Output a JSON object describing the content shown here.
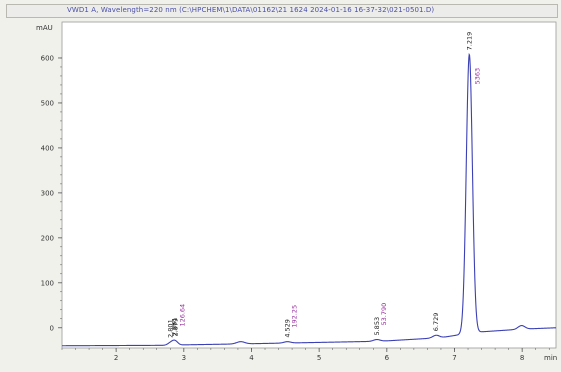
{
  "window": {
    "title": "VWD1 A, Wavelength=220 nm (C:\\HPCHEM\\1\\DATA\\01162\\21 1624 2024-01-16 16-37-32\\021-0501.D)"
  },
  "colors": {
    "trace": "#3b40b4",
    "retention_label": "#222222",
    "area_label": "#9a2ea0",
    "axis": "#555555",
    "background": "#ffffff"
  },
  "chart_data": {
    "type": "line",
    "title": "",
    "ylabel": "mAU",
    "xlabel": "min",
    "xlim": [
      1.2,
      8.5
    ],
    "ylim": [
      -45,
      680
    ],
    "x_ticks": [
      2,
      3,
      4,
      5,
      6,
      7,
      8
    ],
    "y_ticks": [
      0,
      100,
      200,
      300,
      400,
      500,
      600
    ],
    "grid": false,
    "baseline": [
      {
        "x": 1.2,
        "y": -40
      },
      {
        "x": 2.8,
        "y": -39
      },
      {
        "x": 3.0,
        "y": -38
      },
      {
        "x": 3.8,
        "y": -36
      },
      {
        "x": 4.5,
        "y": -34
      },
      {
        "x": 5.9,
        "y": -30
      },
      {
        "x": 6.8,
        "y": -22
      },
      {
        "x": 7.3,
        "y": -10
      },
      {
        "x": 8.0,
        "y": -3
      },
      {
        "x": 8.5,
        "y": 0
      }
    ],
    "peaks": [
      {
        "rt": 2.801,
        "height": 5,
        "width": 0.04,
        "rt_label": "2.801",
        "area_label": ""
      },
      {
        "rt": 2.861,
        "height": 6,
        "width": 0.04,
        "rt_label": "2.861",
        "area_label": ""
      },
      {
        "rt": 2.879,
        "height": 4,
        "width": 0.04,
        "rt_label": "2.879",
        "area_label": "126.64"
      },
      {
        "rt": 3.84,
        "height": 5,
        "width": 0.06,
        "rt_label": "",
        "area_label": ""
      },
      {
        "rt": 4.529,
        "height": 3,
        "width": 0.05,
        "rt_label": "4.529",
        "area_label": "192.25"
      },
      {
        "rt": 5.853,
        "height": 4,
        "width": 0.05,
        "rt_label": "5.853",
        "area_label": "53.790"
      },
      {
        "rt": 6.729,
        "height": 6,
        "width": 0.05,
        "rt_label": "6.729",
        "area_label": ""
      },
      {
        "rt": 7.219,
        "height": 620,
        "width": 0.045,
        "rt_label": "7.219",
        "area_label": "5363"
      },
      {
        "rt": 7.99,
        "height": 8,
        "width": 0.05,
        "rt_label": "",
        "area_label": ""
      }
    ]
  }
}
